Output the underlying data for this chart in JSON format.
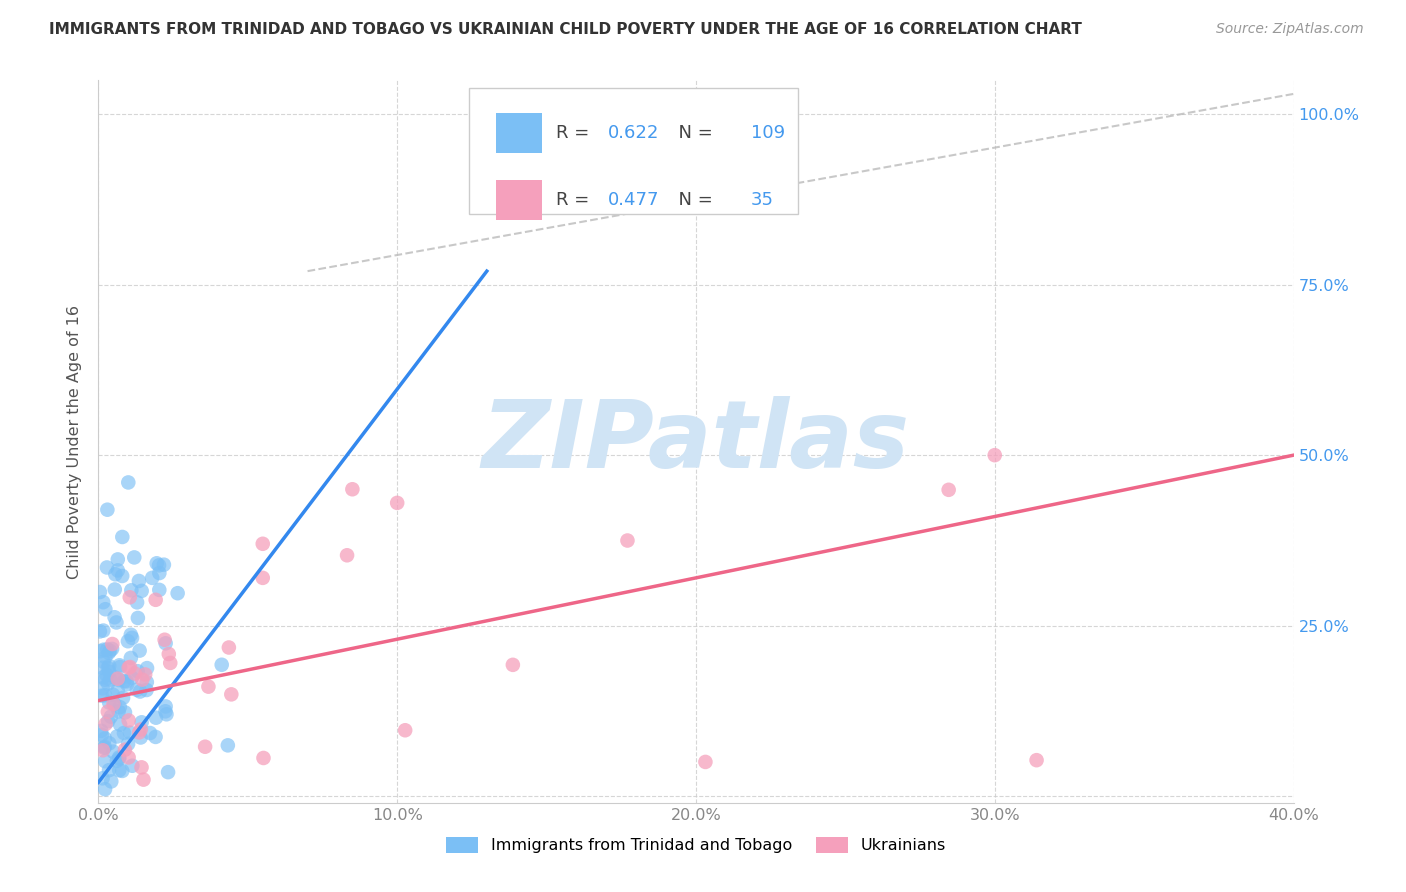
{
  "title": "IMMIGRANTS FROM TRINIDAD AND TOBAGO VS UKRAINIAN CHILD POVERTY UNDER THE AGE OF 16 CORRELATION CHART",
  "source": "Source: ZipAtlas.com",
  "ylabel": "Child Poverty Under the Age of 16",
  "xlim": [
    0.0,
    0.4
  ],
  "ylim": [
    -0.01,
    1.05
  ],
  "xtick_vals": [
    0.0,
    0.1,
    0.2,
    0.3,
    0.4
  ],
  "xtick_labels": [
    "0.0%",
    "10.0%",
    "20.0%",
    "30.0%",
    "40.0%"
  ],
  "ytick_vals": [
    0.0,
    0.25,
    0.5,
    0.75,
    1.0
  ],
  "ytick_labels": [
    "",
    "25.0%",
    "50.0%",
    "75.0%",
    "100.0%"
  ],
  "blue_R": "0.622",
  "blue_N": "109",
  "pink_R": "0.477",
  "pink_N": "35",
  "blue_scatter_color": "#7BBFF5",
  "pink_scatter_color": "#F5A0BC",
  "blue_line_color": "#3388EE",
  "pink_line_color": "#EE6688",
  "ref_line_color": "#BBBBBB",
  "watermark": "ZIPatlas",
  "watermark_color": "#D0E4F5",
  "legend_label_blue": "Immigrants from Trinidad and Tobago",
  "legend_label_pink": "Ukrainians",
  "grid_color": "#CCCCCC",
  "background_color": "#FFFFFF",
  "R_N_color": "#4499EE",
  "title_color": "#333333",
  "source_color": "#999999",
  "tick_color": "#888888",
  "right_tick_color": "#4499EE",
  "blue_line_x0": 0.0,
  "blue_line_y0": 0.02,
  "blue_line_x1": 0.13,
  "blue_line_y1": 0.77,
  "pink_line_x0": 0.0,
  "pink_line_y0": 0.14,
  "pink_line_x1": 0.4,
  "pink_line_y1": 0.5,
  "ref_line_x0": 0.07,
  "ref_line_y0": 0.77,
  "ref_line_x1": 0.4,
  "ref_line_y1": 1.03
}
